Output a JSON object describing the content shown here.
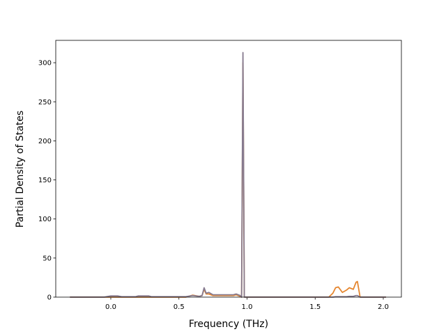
{
  "chart_data": {
    "type": "line",
    "xlabel": "Frequency (THz)",
    "ylabel": "Partial Density of States",
    "x": [
      -0.3,
      -0.05,
      0.0,
      0.05,
      0.08,
      0.18,
      0.2,
      0.28,
      0.3,
      0.55,
      0.6,
      0.65,
      0.67,
      0.685,
      0.7,
      0.72,
      0.75,
      0.8,
      0.9,
      0.92,
      0.95,
      0.96,
      0.97,
      0.98,
      0.99,
      1.55,
      1.6,
      1.63,
      1.65,
      1.67,
      1.7,
      1.73,
      1.75,
      1.78,
      1.8,
      1.81,
      1.83,
      2.02
    ],
    "series": [
      {
        "color": "#e5862f",
        "values": [
          0,
          0,
          0,
          0,
          0,
          0,
          0,
          0,
          0,
          0,
          2.5,
          1,
          2,
          10,
          4,
          4,
          2,
          2,
          2,
          3,
          1,
          0,
          300,
          0,
          0,
          0,
          0,
          5,
          12,
          13,
          6,
          9,
          12,
          10,
          19,
          20,
          0,
          0
        ]
      },
      {
        "color": "#877b8f",
        "values": [
          0,
          0,
          1.5,
          1.5,
          0.5,
          0.5,
          1.5,
          1.5,
          0.5,
          0.5,
          2,
          1,
          2,
          12,
          5,
          6,
          3,
          3,
          3,
          4,
          2,
          0,
          313,
          0,
          0,
          0,
          0,
          0,
          0.5,
          0.5,
          0.5,
          0.5,
          1,
          1,
          2,
          2,
          0,
          0
        ]
      }
    ],
    "xlim": [
      -0.404,
      2.133
    ],
    "ylim": [
      0,
      328.6
    ],
    "xticks": [
      {
        "value": 0,
        "label": "0.0"
      },
      0.5,
      {
        "value": 1,
        "label": "1.0"
      },
      1.5,
      {
        "value": 2,
        "label": "2.0"
      }
    ],
    "yticks": [
      0,
      50,
      100,
      150,
      200,
      250,
      300
    ]
  }
}
